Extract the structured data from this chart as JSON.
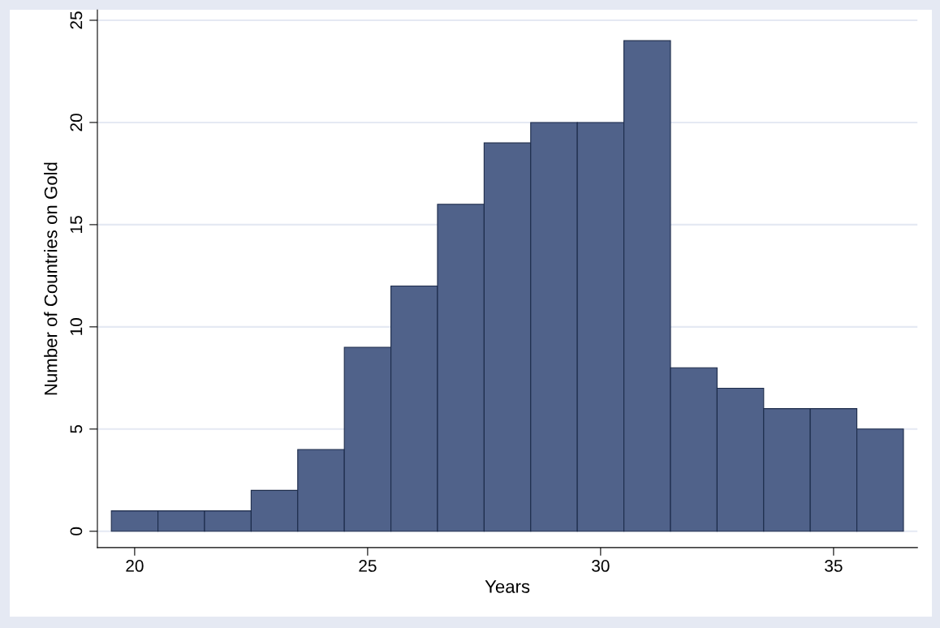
{
  "chart_data": {
    "type": "histogram",
    "xlabel": "Years",
    "ylabel": "Number of Countries on Gold",
    "bins": [
      19.5,
      20.5,
      21.5,
      22.5,
      23.5,
      24.5,
      25.5,
      26.5,
      27.5,
      28.5,
      29.5,
      30.5,
      31.5,
      32.5,
      33.5,
      34.5,
      35.5,
      36.5
    ],
    "values": [
      1,
      1,
      1,
      2,
      4,
      9,
      12,
      16,
      19,
      20,
      20,
      24,
      8,
      7,
      6,
      6,
      5
    ],
    "color": "#50628a",
    "xlim": [
      19.2,
      36.8
    ],
    "xticks": [
      20,
      25,
      30,
      35
    ],
    "ylim": [
      -0.8,
      25.5
    ],
    "yticks": [
      0,
      5,
      10,
      15,
      20,
      25
    ],
    "grid": "y"
  }
}
